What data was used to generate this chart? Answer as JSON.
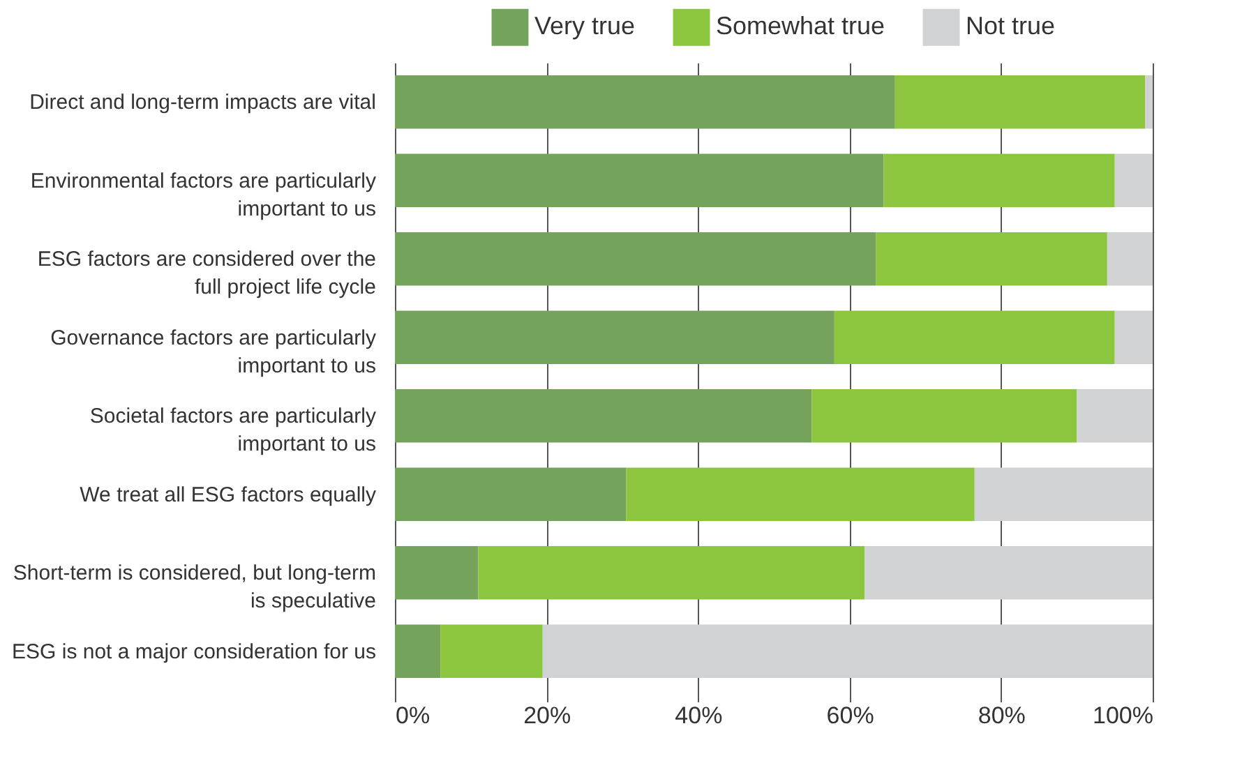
{
  "chart_data": {
    "type": "bar",
    "orientation": "horizontal",
    "stacked": true,
    "categories": [
      "Direct and long-term impacts are vital",
      "Environmental factors are particularly important to us",
      "ESG factors are considered over the full project life cycle",
      "Governance factors are particularly important to us",
      "Societal factors are particularly important to us",
      "We treat all ESG factors equally",
      "Short-term is considered, but long-term is speculative",
      "ESG is not a major consideration for us"
    ],
    "series": [
      {
        "name": "Very true",
        "color": "#74a35b",
        "values": [
          66,
          64.5,
          63.5,
          58,
          55,
          30.5,
          11,
          6
        ]
      },
      {
        "name": "Somewhat true",
        "color": "#8cc63f",
        "values": [
          33,
          30.5,
          30.5,
          37,
          35,
          46,
          51,
          13.5
        ]
      },
      {
        "name": "Not true",
        "color": "#d1d2d4",
        "values": [
          1,
          5,
          6,
          5,
          10,
          23.5,
          38,
          80.5
        ]
      }
    ],
    "xlim": [
      0,
      100
    ],
    "xticks": [
      {
        "value": 0,
        "label": "0%"
      },
      {
        "value": 20,
        "label": "20%"
      },
      {
        "value": 40,
        "label": "40%"
      },
      {
        "value": 60,
        "label": "60%"
      },
      {
        "value": 80,
        "label": "80%"
      },
      {
        "value": 100,
        "label": "100%"
      }
    ],
    "grid": "x",
    "legend": "top"
  }
}
